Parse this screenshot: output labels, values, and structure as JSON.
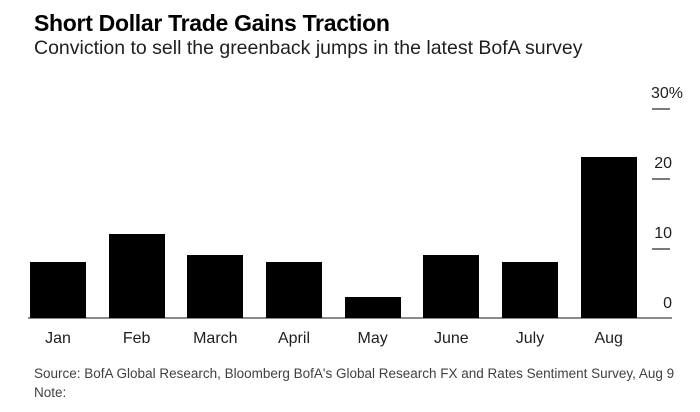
{
  "header": {
    "title": "Short Dollar Trade Gains Traction",
    "subtitle": "Conviction to sell the greenback jumps in the latest BofA survey"
  },
  "chart_data": {
    "type": "bar",
    "categories": [
      "Jan",
      "Feb",
      "March",
      "April",
      "May",
      "June",
      "July",
      "Aug"
    ],
    "values": [
      8,
      12,
      9,
      8,
      3,
      9,
      8,
      23
    ],
    "title": "Short Dollar Trade Gains Traction",
    "subtitle": "Conviction to sell the greenback jumps in the latest BofA survey",
    "xlabel": "",
    "ylabel": "",
    "unit": "%",
    "ylim": [
      0,
      30
    ],
    "y_axis": {
      "side": "right",
      "ticks": [
        0,
        10,
        20,
        30
      ],
      "tick_labels": [
        "0",
        "10",
        "20",
        "30%"
      ]
    },
    "grid": false,
    "legend": false,
    "bar_color": "#000000",
    "axis_color": "#8a8a8a"
  },
  "footer": {
    "source_line": "Source: BofA Global Research, Bloomberg BofA's Global Research FX and Rates Sentiment Survey, Aug 9",
    "note_line": "Note:"
  },
  "colors": {
    "background": "#ffffff",
    "bar": "#000000",
    "axis_line": "#8a8a8a",
    "tick_mark": "#7a7a7a",
    "label_text": "#1e1e1e",
    "source_text": "#404040"
  }
}
